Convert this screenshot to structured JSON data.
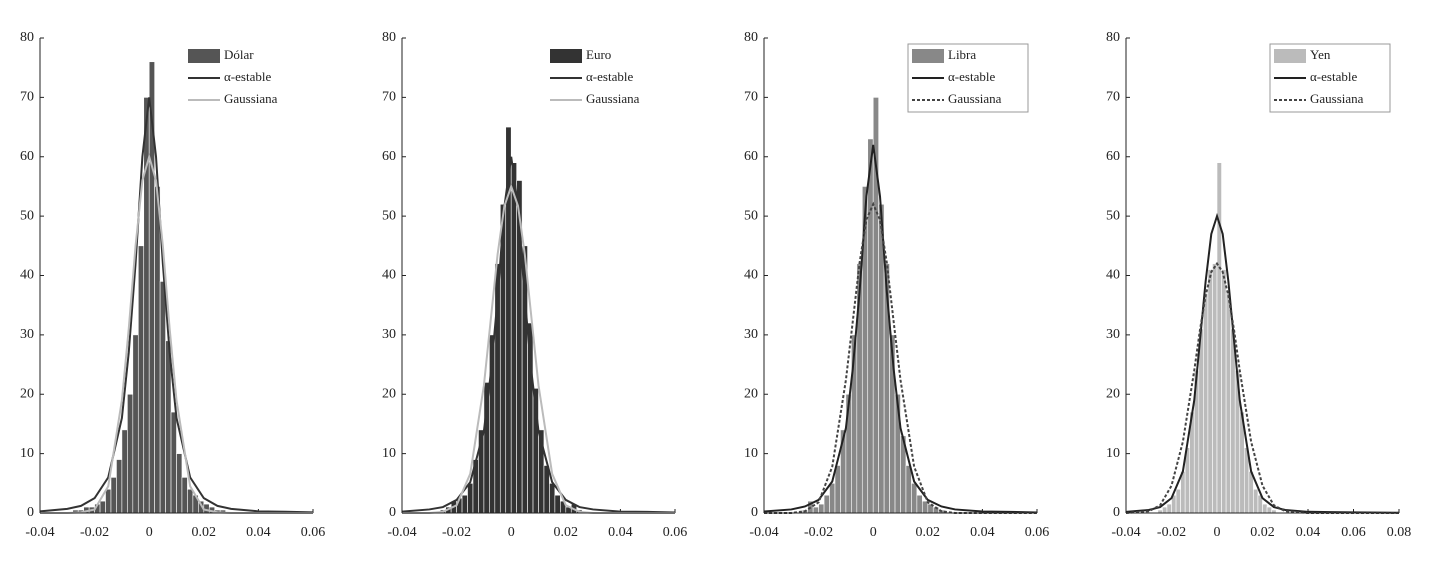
{
  "chart_data": [
    {
      "type": "histogram",
      "name": "Dólar",
      "color": "#555555",
      "bins": [
        -0.03,
        -0.028,
        -0.026,
        -0.024,
        -0.022,
        -0.02,
        -0.018,
        -0.016,
        -0.014,
        -0.012,
        -0.01,
        -0.008,
        -0.006,
        -0.004,
        -0.002,
        0,
        0.002,
        0.004,
        0.006,
        0.008,
        0.01,
        0.012,
        0.014,
        0.016,
        0.018,
        0.02,
        0.022,
        0.024,
        0.026,
        0.028,
        0.03
      ],
      "values": [
        0,
        0.5,
        0.5,
        1,
        1,
        1.5,
        2,
        4,
        6,
        9,
        14,
        20,
        30,
        45,
        70,
        76,
        55,
        39,
        29,
        17,
        10,
        6,
        4,
        3,
        2,
        1.5,
        1,
        0.5,
        0.5,
        0
      ],
      "series": [
        {
          "name": "α-estable",
          "color": "#333333",
          "dash": false,
          "x": [
            -0.04,
            -0.03,
            -0.025,
            -0.02,
            -0.015,
            -0.01,
            -0.0075,
            -0.005,
            -0.0025,
            0,
            0.0025,
            0.005,
            0.0075,
            0.01,
            0.015,
            0.02,
            0.025,
            0.03,
            0.04,
            0.05,
            0.06
          ],
          "values": [
            0.28,
            0.7,
            1.2,
            2.5,
            6,
            16,
            27,
            42,
            60,
            70,
            60,
            42,
            27,
            16,
            6,
            2.5,
            1.2,
            0.7,
            0.28,
            0.21,
            0.1
          ]
        },
        {
          "name": "Gaussiana",
          "color": "#bbbbbb",
          "dash": false,
          "x": [
            -0.04,
            -0.03,
            -0.025,
            -0.02,
            -0.015,
            -0.01,
            -0.0075,
            -0.005,
            -0.0025,
            0,
            0.0025,
            0.005,
            0.0075,
            0.01,
            0.015,
            0.02,
            0.025,
            0.03,
            0.04,
            0.05,
            0.06
          ],
          "values": [
            0,
            0,
            0.1,
            0.6,
            4.5,
            19,
            31,
            45,
            56,
            60,
            56,
            45,
            31,
            19,
            4.5,
            0.6,
            0.1,
            0,
            0,
            0,
            0
          ]
        }
      ],
      "xlim": [
        -0.04,
        0.06
      ],
      "xticks": [
        -0.04,
        -0.02,
        0,
        0.02,
        0.04,
        0.06
      ],
      "ylim": [
        0,
        80
      ],
      "yticks": [
        0,
        10,
        20,
        30,
        40,
        50,
        60,
        70,
        80
      ],
      "legend": "upper right",
      "legend_frame": false
    },
    {
      "type": "histogram",
      "name": "Euro",
      "color": "#333333",
      "bins": [
        -0.03,
        -0.028,
        -0.026,
        -0.024,
        -0.022,
        -0.02,
        -0.018,
        -0.016,
        -0.014,
        -0.012,
        -0.01,
        -0.008,
        -0.006,
        -0.004,
        -0.002,
        0,
        0.002,
        0.004,
        0.006,
        0.008,
        0.01,
        0.012,
        0.014,
        0.016,
        0.018,
        0.02,
        0.022,
        0.024,
        0.026,
        0.028,
        0.03
      ],
      "values": [
        0,
        0,
        0.5,
        1,
        2,
        2.5,
        3,
        5,
        9,
        14,
        22,
        30,
        42,
        52,
        65,
        59,
        56,
        45,
        32,
        21,
        14,
        8,
        5,
        3,
        2,
        1,
        1.5,
        0.5,
        0,
        0
      ],
      "series": [
        {
          "name": "α-estable",
          "color": "#333333",
          "dash": false,
          "x": [
            -0.04,
            -0.03,
            -0.025,
            -0.02,
            -0.015,
            -0.01,
            -0.0075,
            -0.005,
            -0.0025,
            0,
            0.0025,
            0.005,
            0.0075,
            0.01,
            0.015,
            0.02,
            0.025,
            0.03,
            0.04,
            0.05,
            0.06
          ],
          "values": [
            0.24,
            0.6,
            1,
            2.2,
            5.2,
            13.8,
            23.4,
            36,
            51.6,
            60,
            51.6,
            36,
            23.4,
            13.8,
            5.2,
            2.2,
            1,
            0.6,
            0.24,
            0.18,
            0.09
          ]
        },
        {
          "name": "Gaussiana",
          "color": "#bbbbbb",
          "dash": false,
          "x": [
            -0.04,
            -0.03,
            -0.025,
            -0.02,
            -0.015,
            -0.01,
            -0.0075,
            -0.005,
            -0.0025,
            0,
            0.0025,
            0.005,
            0.0075,
            0.01,
            0.015,
            0.02,
            0.025,
            0.03,
            0.04,
            0.05,
            0.06
          ],
          "values": [
            0,
            0,
            0.2,
            1.3,
            6.6,
            21.5,
            32.5,
            43.5,
            51.7,
            55,
            51.7,
            43.5,
            32.5,
            21.5,
            6.6,
            1.3,
            0.2,
            0,
            0,
            0,
            0
          ]
        }
      ],
      "xlim": [
        -0.04,
        0.06
      ],
      "xticks": [
        -0.04,
        -0.02,
        0,
        0.02,
        0.04,
        0.06
      ],
      "ylim": [
        0,
        80
      ],
      "yticks": [
        0,
        10,
        20,
        30,
        40,
        50,
        60,
        70,
        80
      ],
      "legend": "upper right",
      "legend_frame": false
    },
    {
      "type": "histogram",
      "name": "Libra",
      "color": "#888888",
      "bins": [
        -0.03,
        -0.028,
        -0.026,
        -0.024,
        -0.022,
        -0.02,
        -0.018,
        -0.016,
        -0.014,
        -0.012,
        -0.01,
        -0.008,
        -0.006,
        -0.004,
        -0.002,
        0,
        0.002,
        0.004,
        0.006,
        0.008,
        0.01,
        0.012,
        0.014,
        0.016,
        0.018,
        0.02,
        0.022,
        0.024,
        0.026,
        0.028,
        0.03
      ],
      "values": [
        0,
        0,
        0.5,
        2,
        1,
        1.5,
        3,
        5,
        8,
        14,
        20,
        30,
        42,
        55,
        63,
        70,
        52,
        42,
        30,
        20,
        13,
        8,
        5,
        3,
        2,
        1.5,
        1,
        0.5,
        0,
        0
      ],
      "series": [
        {
          "name": "α-estable",
          "color": "#222222",
          "dash": false,
          "x": [
            -0.04,
            -0.03,
            -0.025,
            -0.02,
            -0.015,
            -0.01,
            -0.0075,
            -0.005,
            -0.0025,
            0,
            0.0025,
            0.005,
            0.0075,
            0.01,
            0.015,
            0.02,
            0.025,
            0.03,
            0.04,
            0.05,
            0.06
          ],
          "values": [
            0.25,
            0.6,
            1.1,
            2.2,
            5.3,
            14.3,
            24.2,
            37.2,
            53.3,
            62,
            53.3,
            37.2,
            24.2,
            14.3,
            5.3,
            2.2,
            1.1,
            0.6,
            0.25,
            0.19,
            0.09
          ]
        },
        {
          "name": "Gaussiana",
          "color": "#444444",
          "dash": true,
          "x": [
            -0.04,
            -0.03,
            -0.025,
            -0.02,
            -0.015,
            -0.01,
            -0.0075,
            -0.005,
            -0.0025,
            0,
            0.0025,
            0.005,
            0.0075,
            0.01,
            0.015,
            0.02,
            0.025,
            0.03,
            0.04,
            0.05,
            0.06
          ],
          "values": [
            0,
            0,
            0.3,
            1.8,
            7.8,
            22.4,
            32.2,
            42.1,
            49.4,
            52,
            49.4,
            42.1,
            32.2,
            22.4,
            7.8,
            1.8,
            0.3,
            0,
            0,
            0,
            0
          ]
        }
      ],
      "xlim": [
        -0.04,
        0.06
      ],
      "xticks": [
        -0.04,
        -0.02,
        0,
        0.02,
        0.04,
        0.06
      ],
      "ylim": [
        0,
        80
      ],
      "yticks": [
        0,
        10,
        20,
        30,
        40,
        50,
        60,
        70,
        80
      ],
      "legend": "upper right",
      "legend_frame": true
    },
    {
      "type": "histogram",
      "name": "Yen",
      "color": "#bbbbbb",
      "bins": [
        -0.03,
        -0.028,
        -0.026,
        -0.024,
        -0.022,
        -0.02,
        -0.018,
        -0.016,
        -0.014,
        -0.012,
        -0.01,
        -0.008,
        -0.006,
        -0.004,
        -0.002,
        0,
        0.002,
        0.004,
        0.006,
        0.008,
        0.01,
        0.012,
        0.014,
        0.016,
        0.018,
        0.02,
        0.022,
        0.024,
        0.026,
        0.028,
        0.03
      ],
      "values": [
        0,
        0,
        0.5,
        1,
        1.5,
        3,
        4,
        7,
        11,
        17,
        24,
        31,
        37,
        41,
        42,
        59,
        41,
        37,
        31,
        24,
        17,
        11,
        7,
        4,
        3,
        1.5,
        1,
        0.5,
        0,
        0
      ],
      "series": [
        {
          "name": "α-estable",
          "color": "#222222",
          "dash": false,
          "x": [
            -0.04,
            -0.03,
            -0.025,
            -0.02,
            -0.015,
            -0.01,
            -0.0075,
            -0.005,
            -0.0025,
            0,
            0.0025,
            0.005,
            0.0075,
            0.01,
            0.015,
            0.02,
            0.025,
            0.03,
            0.04,
            0.05,
            0.06,
            0.08
          ],
          "values": [
            0.2,
            0.5,
            1,
            2.5,
            7,
            19,
            29,
            39,
            47,
            50,
            47,
            39,
            29,
            19,
            7,
            2.5,
            1,
            0.5,
            0.2,
            0.15,
            0.1,
            0.05
          ]
        },
        {
          "name": "Gaussiana",
          "color": "#444444",
          "dash": true,
          "x": [
            -0.04,
            -0.03,
            -0.025,
            -0.02,
            -0.015,
            -0.01,
            -0.0075,
            -0.005,
            -0.0025,
            0,
            0.0025,
            0.005,
            0.0075,
            0.01,
            0.015,
            0.02,
            0.025,
            0.03,
            0.04,
            0.05,
            0.06,
            0.08
          ],
          "values": [
            0,
            0.3,
            1.3,
            4.6,
            12,
            24,
            30.8,
            36.6,
            40.6,
            42,
            40.6,
            36.6,
            30.8,
            24,
            12,
            4.6,
            1.3,
            0.3,
            0,
            0,
            0,
            0
          ]
        }
      ],
      "xlim": [
        -0.04,
        0.08
      ],
      "xticks": [
        -0.04,
        -0.02,
        0,
        0.02,
        0.04,
        0.06,
        0.08
      ],
      "ylim": [
        0,
        80
      ],
      "yticks": [
        0,
        10,
        20,
        30,
        40,
        50,
        60,
        70,
        80
      ],
      "legend": "upper right",
      "legend_frame": true
    }
  ]
}
